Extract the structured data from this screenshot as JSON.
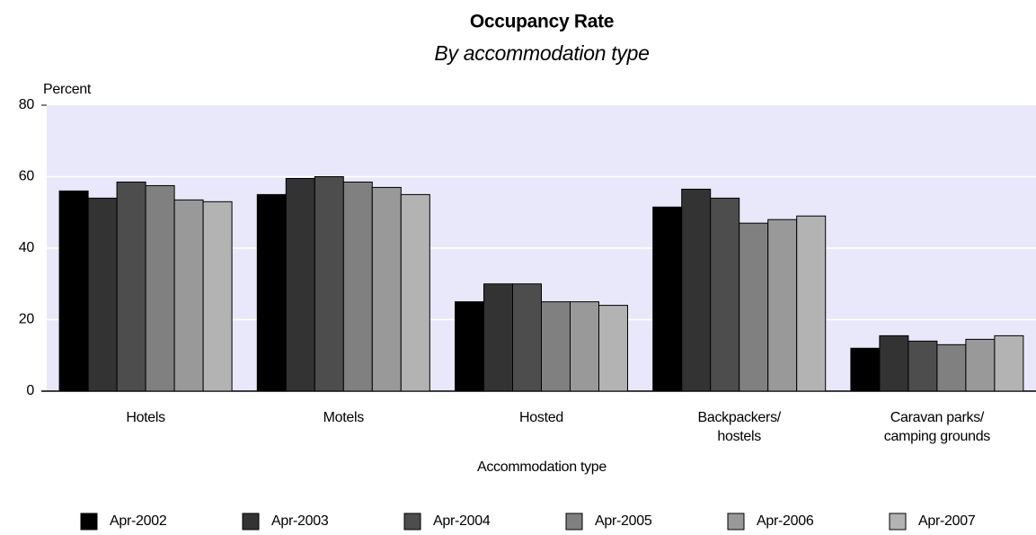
{
  "chart_data": {
    "type": "bar",
    "title": "Occupancy Rate",
    "subtitle": "By accommodation type",
    "y_axis_label": "Percent",
    "x_axis_label": "Accommodation type",
    "categories": [
      "Hotels",
      "Motels",
      "Hosted",
      "Backpackers/\nhostels",
      "Caravan parks/\ncamping grounds"
    ],
    "series": [
      {
        "name": "Apr-2002",
        "color": "#000000",
        "values": [
          56,
          55,
          25,
          51.5,
          12
        ]
      },
      {
        "name": "Apr-2003",
        "color": "#333333",
        "values": [
          54,
          59.5,
          30,
          56.5,
          15.5
        ]
      },
      {
        "name": "Apr-2004",
        "color": "#4d4d4d",
        "values": [
          58.5,
          60,
          30,
          54,
          14
        ]
      },
      {
        "name": "Apr-2005",
        "color": "#808080",
        "values": [
          57.5,
          58.5,
          25,
          47,
          13
        ]
      },
      {
        "name": "Apr-2006",
        "color": "#999999",
        "values": [
          53.5,
          57,
          25,
          48,
          14.5
        ]
      },
      {
        "name": "Apr-2007",
        "color": "#b3b3b3",
        "values": [
          53,
          55,
          24,
          49,
          15.5
        ]
      }
    ],
    "ylim": [
      0,
      80
    ],
    "yticks": [
      0,
      20,
      40,
      60,
      80
    ],
    "grid": true,
    "legend": "bottom"
  }
}
